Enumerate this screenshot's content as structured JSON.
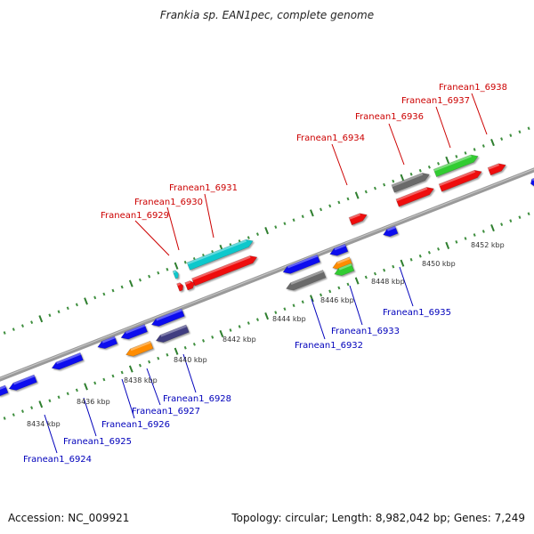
{
  "title": "Frankia sp. EAN1pec, complete genome",
  "footer": {
    "accession": "Accession: NC_009921",
    "topology": "Topology: circular; Length: 8,982,042 bp; Genes: 7,249"
  },
  "colors": {
    "backbone": "#8a8a8a",
    "tick": "#3f8f3f",
    "forward_label": "#cc0000",
    "reverse_label": "#0000bb"
  },
  "kbp_labels": [
    "8434 kbp",
    "8436 kbp",
    "8438 kbp",
    "8440 kbp",
    "8442 kbp",
    "8444 kbp",
    "8446 kbp",
    "8448 kbp",
    "8450 kbp",
    "8452 kbp"
  ],
  "forward_genes": [
    {
      "label": "Franean1_6929"
    },
    {
      "label": "Franean1_6930"
    },
    {
      "label": "Franean1_6931"
    },
    {
      "label": "Franean1_6934"
    },
    {
      "label": "Franean1_6936"
    },
    {
      "label": "Franean1_6937"
    },
    {
      "label": "Franean1_6938"
    }
  ],
  "reverse_genes": [
    {
      "label": "Franean1_6924"
    },
    {
      "label": "Franean1_6925"
    },
    {
      "label": "Franean1_6926"
    },
    {
      "label": "Franean1_6927"
    },
    {
      "label": "Franean1_6928"
    },
    {
      "label": "Franean1_6932"
    },
    {
      "label": "Franean1_6933"
    },
    {
      "label": "Franean1_6935"
    }
  ]
}
